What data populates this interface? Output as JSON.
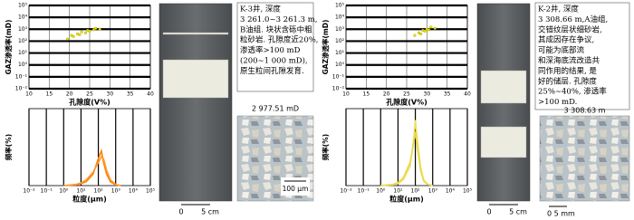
{
  "panels": [
    {
      "scatter": {
        "type": "scatter",
        "x_label": "孔隙度(V%)",
        "y_label": "GAZ渗透率(mD)",
        "xlim": [
          10,
          40
        ],
        "xticks": [
          10,
          15,
          20,
          25,
          30,
          35,
          40
        ],
        "ylim": [
          0.01,
          100000
        ],
        "y_log": true,
        "yticks": [
          {
            "value": 0.01,
            "label": "10⁻²"
          },
          {
            "value": 0.1,
            "label": "10⁻¹"
          },
          {
            "value": 1,
            "label": "10⁰"
          },
          {
            "value": 10,
            "label": "10¹"
          },
          {
            "value": 100,
            "label": "10²"
          },
          {
            "value": 1000,
            "label": "10³"
          },
          {
            "value": 10000,
            "label": "10⁴"
          },
          {
            "value": 100000,
            "label": "10⁵"
          }
        ],
        "grid": true,
        "color": "#e6e000",
        "x": [
          19.5,
          20.5,
          21,
          22,
          22.5,
          23,
          24,
          24.5,
          25,
          26,
          26.5,
          27.5
        ],
        "values": [
          150,
          300,
          250,
          400,
          350,
          600,
          500,
          800,
          700,
          900,
          1200,
          1000
        ]
      },
      "frequency": {
        "type": "line",
        "x_label": "粒度(μm)",
        "y_label": "频率(%)",
        "xlim": [
          0.01,
          100000
        ],
        "x_log": true,
        "xticks": [
          {
            "value": 0.01,
            "label": "10⁻²"
          },
          {
            "value": 0.1,
            "label": "10⁻¹"
          },
          {
            "value": 1,
            "label": "10⁰"
          },
          {
            "value": 10,
            "label": "10¹"
          },
          {
            "value": 100,
            "label": "10²"
          },
          {
            "value": 1000,
            "label": "10³"
          },
          {
            "value": 10000,
            "label": "10⁴"
          },
          {
            "value": 100000,
            "label": "10⁵"
          }
        ],
        "ylim": [
          0,
          20
        ],
        "grid": true,
        "series": [
          {
            "color": "#ff7f00",
            "x": [
              1,
              5,
              10,
              20,
              50,
              100,
              150,
              200,
              300,
              500,
              1000,
              2000
            ],
            "values": [
              0,
              0.2,
              0.5,
              1,
              3,
              7,
              9,
              6,
              3,
              1,
              0.2,
              0
            ]
          },
          {
            "color": "#ff9a30",
            "x": [
              1,
              5,
              10,
              20,
              50,
              100,
              150,
              200,
              300,
              500,
              1000,
              2000
            ],
            "values": [
              0,
              0.3,
              0.7,
              1.5,
              3.5,
              6,
              7.5,
              7,
              4,
              1.5,
              0.3,
              0
            ]
          }
        ]
      },
      "core": {
        "scale_labels": [
          "0",
          "5 cm"
        ]
      },
      "description": [
        "K-3井, 深度",
        "3 261.0~3 261.3 m,",
        "B油组. 块状含砾中粗",
        "粒砂岩. 孔隙度近20%,",
        "渗透率>100 mD",
        "(200~1 000 mD),",
        "原生粒间孔隙发育."
      ],
      "thin_section": {
        "label": "2 977.51 mD",
        "scale_label": "100 μm"
      }
    },
    {
      "scatter": {
        "type": "scatter",
        "x_label": "孔隙度(V%)",
        "y_label": "GAZ渗透率(mD)",
        "xlim": [
          10,
          40
        ],
        "xticks": [
          10,
          15,
          20,
          25,
          30,
          35,
          40
        ],
        "ylim": [
          0.01,
          100000
        ],
        "y_log": true,
        "yticks": [
          {
            "value": 0.01,
            "label": "10⁻²"
          },
          {
            "value": 0.1,
            "label": "10⁻¹"
          },
          {
            "value": 1,
            "label": "10⁰"
          },
          {
            "value": 10,
            "label": "10¹"
          },
          {
            "value": 100,
            "label": "10²"
          },
          {
            "value": 1000,
            "label": "10³"
          },
          {
            "value": 10000,
            "label": "10⁴"
          },
          {
            "value": 100000,
            "label": "10⁵"
          }
        ],
        "grid": true,
        "color": "#e6e000",
        "x": [
          27,
          28,
          28.5,
          29,
          29.5,
          30,
          30.5,
          31,
          32
        ],
        "values": [
          300,
          500,
          400,
          800,
          700,
          1000,
          900,
          1500,
          1200
        ]
      },
      "frequency": {
        "type": "line",
        "x_label": "粒度(μm)",
        "y_label": "频率(%)",
        "xlim": [
          0.01,
          100000
        ],
        "x_log": true,
        "xticks": [
          {
            "value": 0.01,
            "label": "10⁻²"
          },
          {
            "value": 0.1,
            "label": "10⁻¹"
          },
          {
            "value": 1,
            "label": "10⁰"
          },
          {
            "value": 10,
            "label": "10¹"
          },
          {
            "value": 100,
            "label": "10²"
          },
          {
            "value": 1000,
            "label": "10³"
          },
          {
            "value": 10000,
            "label": "10⁴"
          },
          {
            "value": 100000,
            "label": "10⁵"
          }
        ],
        "ylim": [
          0,
          20
        ],
        "grid": true,
        "series": [
          {
            "color": "#f0e060",
            "x": [
              1,
              5,
              10,
              20,
              50,
              80,
              100,
              130,
              200,
              300,
              500,
              1000
            ],
            "values": [
              0,
              0.2,
              0.5,
              1.5,
              5,
              12,
              17,
              12,
              5,
              1.5,
              0.4,
              0
            ]
          },
          {
            "color": "#e8d84a",
            "x": [
              1,
              5,
              10,
              20,
              50,
              80,
              100,
              130,
              200,
              300,
              500,
              1000
            ],
            "values": [
              0,
              0.3,
              0.8,
              2,
              6,
              11,
              14,
              10,
              4,
              1.2,
              0.3,
              0
            ]
          }
        ]
      },
      "core": {
        "scale_labels": [
          "0",
          "5 cm"
        ]
      },
      "description": [
        "K-2井, 深度",
        "3 308.66 m,A油组,",
        "交错纹层状细砂岩,",
        "其成因存在争议,",
        "可能为底部流",
        "和深海底流改造共",
        "同作用的结果, 是",
        "好的储层. 孔隙度",
        "25%~40%, 渗透率",
        ">100 mD."
      ],
      "thin_section": {
        "label": "3 308.63 m",
        "scale_label": "0 5 mm"
      }
    }
  ]
}
